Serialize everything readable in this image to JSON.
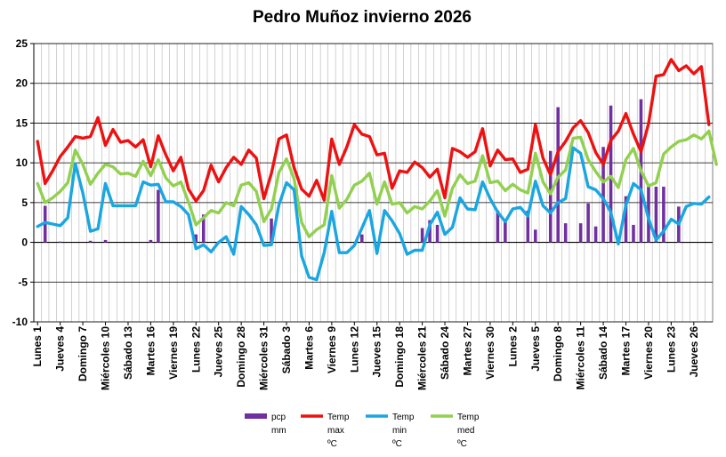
{
  "chart_data": {
    "type": "bar+line",
    "title": "Pedro Muñoz invierno 2026",
    "ylim": [
      -10,
      25
    ],
    "yticks": [
      -10,
      -5,
      0,
      5,
      10,
      15,
      20,
      25
    ],
    "grid": true,
    "legend_position": "bottom-center",
    "days": 90,
    "x_tick_labels": [
      "Lunes 1",
      "Jueves 4",
      "Domingo 7",
      "Miércoles 10",
      "Sábado 13",
      "Martes 16",
      "Viernes 19",
      "Lunes 22",
      "Jueves 25",
      "Domingo 28",
      "Miércoles 31",
      "Sábado 3",
      "Martes 6",
      "Viernes 9",
      "Lunes 12",
      "Jueves 15",
      "Domingo 18",
      "Miércoles 21",
      "Sábado 24",
      "Martes 27",
      "Viernes 30",
      "Lunes 2",
      "Jueves 5",
      "Domingo 8",
      "Miércoles 11",
      "Sábado 14",
      "Martes 17",
      "Viernes 20",
      "Lunes 23",
      "Jueves 26"
    ],
    "series": [
      {
        "name": "pcp mm",
        "legend": [
          "pcp",
          "mm"
        ],
        "kind": "bar",
        "color": "#7030a0",
        "values": [
          0,
          4.6,
          0,
          0.1,
          0,
          0,
          0,
          0.2,
          0,
          0.3,
          0,
          0,
          0,
          0,
          0,
          0.3,
          6.6,
          0,
          0,
          0,
          0,
          1,
          3.5,
          0,
          0,
          0,
          0,
          0,
          0,
          0,
          0,
          3,
          0,
          0,
          0,
          0,
          0,
          0,
          0,
          0,
          0,
          0,
          0,
          1,
          0,
          0,
          0,
          0,
          0,
          0,
          0,
          1.8,
          2.8,
          2.2,
          0,
          0,
          0,
          0,
          0,
          0,
          0,
          4,
          2.8,
          0,
          0,
          4,
          1.6,
          0,
          11.5,
          17,
          2.4,
          0,
          2.4,
          4.9,
          2,
          12,
          17.2,
          0,
          5.8,
          2.2,
          18,
          7,
          7,
          7,
          0,
          4.5,
          0,
          0,
          0,
          0
        ]
      },
      {
        "name": "Temp max ºC",
        "legend": [
          "Temp",
          "max",
          "ºC"
        ],
        "kind": "line",
        "color": "#ee1111",
        "values": [
          12.7,
          7.4,
          9,
          10.8,
          12,
          13.3,
          13.1,
          13.3,
          15.7,
          12.2,
          14.2,
          12.6,
          12.8,
          12,
          12.9,
          9.5,
          13.4,
          11,
          9,
          10.7,
          6.7,
          5.2,
          6.5,
          9.7,
          7.6,
          9.4,
          10.7,
          9.8,
          11.6,
          10.6,
          5.5,
          8.7,
          13,
          13.5,
          9.4,
          6.7,
          5.8,
          7.8,
          5.3,
          13,
          9.8,
          12,
          14.8,
          13.6,
          13.3,
          11,
          11.2,
          6.8,
          9,
          8.8,
          10.1,
          9.4,
          8.2,
          9.2,
          5.6,
          11.8,
          11.4,
          10.7,
          11.4,
          14.3,
          9.6,
          11.6,
          10.4,
          10.5,
          8.8,
          9.2,
          14.8,
          10.6,
          8.5,
          11.4,
          12.7,
          14.4,
          15.3,
          13.8,
          11.3,
          9.8,
          12.8,
          14,
          16.2,
          13.6,
          11.4,
          14.9,
          20.9,
          21.1,
          23,
          21.6,
          22.2,
          21.2,
          22.1,
          14.8
        ]
      },
      {
        "name": "Temp min ºC",
        "legend": [
          "Temp",
          "min",
          "ºC"
        ],
        "kind": "line",
        "color": "#1aa6e0",
        "values": [
          2,
          2.5,
          2.3,
          2.1,
          3.1,
          9.9,
          6.2,
          1.4,
          1.7,
          7.4,
          4.6,
          4.6,
          4.6,
          4.6,
          7.6,
          7.2,
          7.3,
          5.1,
          5.1,
          4.5,
          3.5,
          -0.8,
          -0.3,
          -1.2,
          0,
          0.7,
          -1.5,
          4.5,
          3.5,
          2.2,
          -0.4,
          -0.3,
          4.7,
          7.5,
          6.6,
          -1.7,
          -4.4,
          -4.7,
          -1.3,
          3.9,
          -1.3,
          -1.3,
          -0.4,
          1.8,
          4,
          -1.4,
          4,
          2.7,
          1.1,
          -1.5,
          -1,
          -1,
          2.2,
          3.8,
          1,
          1.9,
          5.6,
          4.2,
          4.1,
          7.6,
          5.5,
          3.8,
          2.6,
          4.2,
          4.4,
          3.3,
          7.7,
          4.6,
          3.7,
          5,
          5.5,
          11.9,
          11.2,
          7,
          6.6,
          5.5,
          3.8,
          -0.2,
          4.7,
          7.4,
          6.6,
          3,
          0.3,
          1.4,
          2.9,
          2.3,
          4.5,
          4.9,
          4.8,
          5.7
        ]
      },
      {
        "name": "Temp med ºC",
        "legend": [
          "Temp",
          "med",
          "ºC"
        ],
        "kind": "line",
        "color": "#92d050",
        "values": [
          7.4,
          5,
          5.6,
          6.4,
          7.5,
          11.6,
          9.8,
          7.3,
          8.7,
          9.8,
          9.5,
          8.6,
          8.7,
          8.3,
          10.2,
          8.4,
          10.4,
          8.1,
          7.1,
          7.6,
          5.1,
          2.2,
          3.1,
          4,
          3.7,
          5,
          4.6,
          7.2,
          7.5,
          6.4,
          2.6,
          4.2,
          8.8,
          10.5,
          8,
          2.5,
          0.7,
          1.6,
          2.2,
          8.4,
          4.3,
          5.4,
          7.2,
          7.7,
          8.7,
          4.8,
          7.6,
          4.8,
          5,
          3.7,
          4.5,
          4.2,
          5.2,
          6.5,
          3.3,
          6.8,
          8.5,
          7.4,
          7.7,
          10.9,
          7.5,
          7.7,
          6.5,
          7.3,
          6.6,
          6.2,
          11.2,
          7.6,
          6.1,
          8.2,
          9.1,
          13.1,
          13.2,
          10.4,
          8.9,
          7.6,
          8.3,
          6.9,
          10.4,
          11.8,
          9,
          7.1,
          7.5,
          11.1,
          12,
          12.7,
          12.9,
          13.5,
          13,
          14,
          9.8
        ]
      }
    ]
  }
}
